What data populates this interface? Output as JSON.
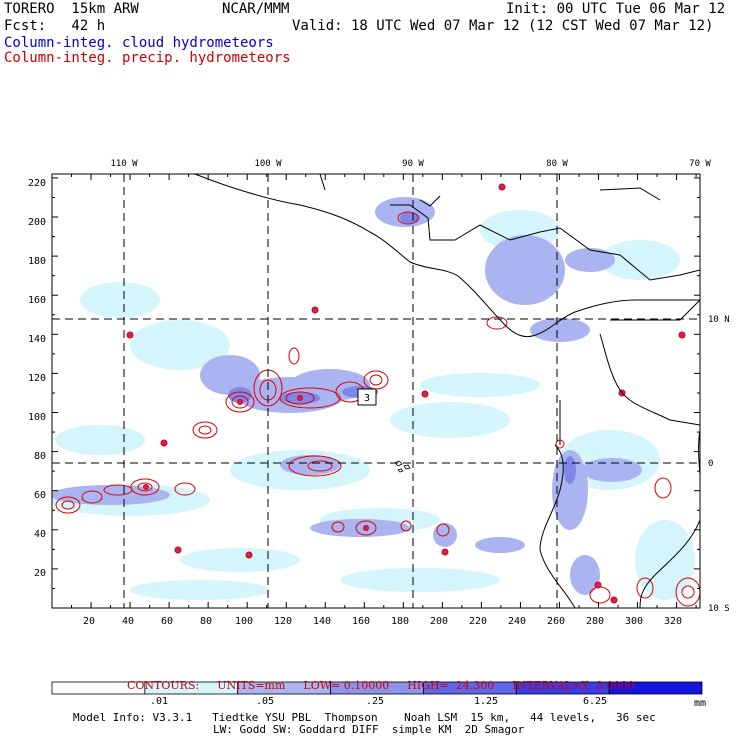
{
  "header": {
    "model": "TORERO  15km ARW",
    "center": "NCAR/MMM",
    "init": "Init: 00 UTC Tue 06 Mar 12",
    "fcst": "Fcst:   42 h",
    "valid": "Valid: 18 UTC Wed 07 Mar 12 (12 CST Wed 07 Mar 12)",
    "field_cloud": "Column-integ. cloud hydrometeors",
    "field_precip": "Column-integ. precip. hydrometeors"
  },
  "map": {
    "lon_labels": [
      "110 W",
      "100 W",
      "90 W",
      "80 W",
      "70 W"
    ],
    "lat_labels": [
      "10 N",
      "0",
      "10 S"
    ],
    "y_ticks": [
      "20",
      "40",
      "60",
      "80",
      "100",
      "120",
      "140",
      "160",
      "180",
      "200",
      "220"
    ],
    "x_ticks": [
      "20",
      "40",
      "60",
      "80",
      "100",
      "120",
      "140",
      "160",
      "180",
      "200",
      "220",
      "240",
      "260",
      "280",
      "300",
      "320"
    ],
    "high_label": "3",
    "colors": {
      "cloud_light": "#d4f5fb",
      "cloud_mid": "#aab4f0",
      "cloud_dark": "#7e86ea",
      "precip": "#dd0000",
      "precip_center": "#cc2266"
    }
  },
  "contours": {
    "label": "CONTOURS:",
    "units": "UNITS=mm",
    "low": "LOW= 0.10000",
    "high": "HIGH=  24.300",
    "interval": "INTERVAL=X  3.0000"
  },
  "colorbar": {
    "labels": [
      ".01",
      ".05",
      ".25",
      "1.25",
      "6.25"
    ],
    "unit": "mm",
    "colors": [
      "#ffffff",
      "#d4f5fb",
      "#aab4f0",
      "#8c94ec",
      "#5f66e8",
      "#3c3ce6",
      "#1414e0"
    ]
  },
  "footer": {
    "line1": "Model Info: V3.3.1   Tiedtke YSU PBL  Thompson    Noah LSM  15 km,   44 levels,   36 sec",
    "line2": "LW: Godd SW: Goddard DIFF  simple KM  2D Smagor"
  }
}
